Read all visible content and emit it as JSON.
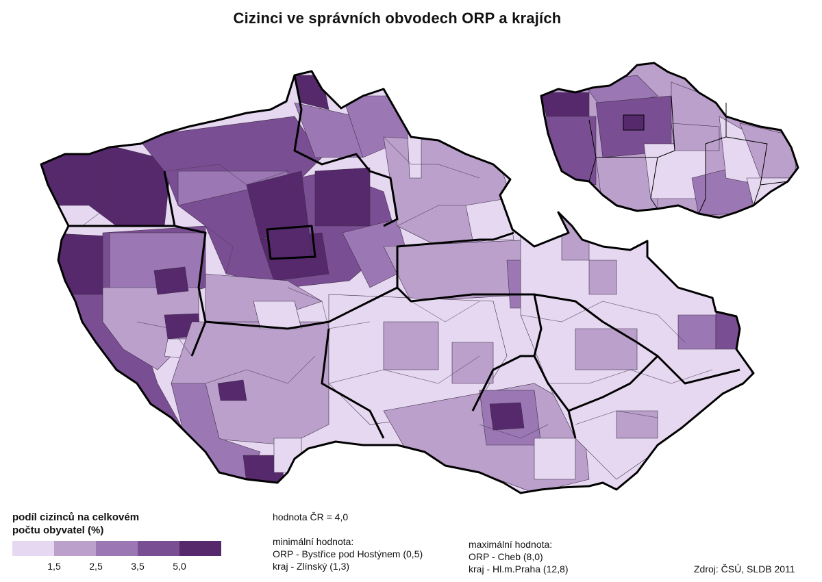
{
  "title": "Cizinci ve správních obvodech ORP a krajích",
  "map": {
    "colors": {
      "class1": "#e6d8f0",
      "class2": "#bba0cc",
      "class3": "#9b78b3",
      "class4": "#7a4e93",
      "class5": "#56296c",
      "border": "#000000",
      "sea": "#ffffff"
    }
  },
  "legend": {
    "title_line1": "podíl cizinců na celkovém",
    "title_line2": "počtu obyvatel (%)",
    "breaks": [
      "1,5",
      "2,5",
      "3,5",
      "5,0"
    ]
  },
  "stats": {
    "national": "hodnota ČR = 4,0",
    "min_label": "minimální hodnota:",
    "min_orp": "ORP - Bystřice pod Hostýnem (0,5)",
    "min_kraj": "kraj   - Zlínský (1,3)",
    "max_label": "maximální hodnota:",
    "max_orp": "ORP - Cheb (8,0)",
    "max_kraj": "kraj   - Hl.m.Praha (12,8)"
  },
  "source": "Zdroj: ČSÚ, SLDB 2011"
}
